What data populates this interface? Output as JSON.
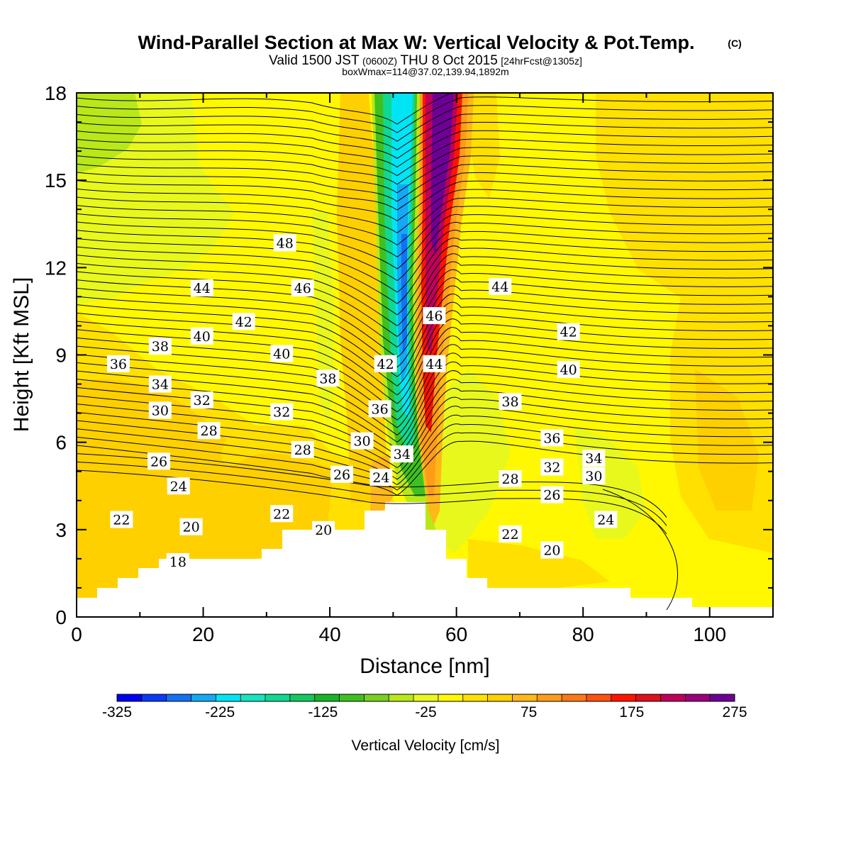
{
  "header": {
    "title": "Wind-Parallel Section at Max W: Vertical Velocity & Pot.Temp.",
    "copyright_mark": "(C)",
    "valid_prefix": "Valid 1500 JST",
    "valid_utc": "(0600Z)",
    "valid_date": "THU 8 Oct 2015",
    "forecast_tag": "[24hrFcst@1305z]",
    "box_info": "boxWmax=114@37.02,139.94,1892m"
  },
  "chart_data": {
    "type": "contour",
    "xlabel": "Distance [nm]",
    "ylabel": "Height [Kft MSL]",
    "xlim": [
      0,
      110
    ],
    "ylim": [
      0,
      18
    ],
    "x_ticks": [
      0,
      20,
      40,
      60,
      80,
      100
    ],
    "y_ticks": [
      0,
      3,
      6,
      9,
      12,
      15,
      18
    ],
    "grid": false,
    "fill_variable": "Vertical Velocity",
    "colorbar": {
      "title": "Vertical Velocity [cm/s]",
      "ticks": [
        -325,
        -225,
        -125,
        -25,
        75,
        175,
        275
      ],
      "levels": [
        -325,
        -300,
        -275,
        -250,
        -225,
        -200,
        -175,
        -150,
        -125,
        -100,
        -75,
        -50,
        -25,
        0,
        25,
        50,
        75,
        100,
        125,
        150,
        175,
        200,
        225,
        250,
        275
      ],
      "colors": [
        "#0000f5",
        "#0a3af5",
        "#1470f5",
        "#14a8f5",
        "#00e5f5",
        "#14e5c0",
        "#10d890",
        "#14c860",
        "#18b428",
        "#40c020",
        "#78d020",
        "#b8e818",
        "#e8f81c",
        "#fff800",
        "#ffe000",
        "#ffd000",
        "#ffb818",
        "#ff9c18",
        "#ff7818",
        "#ff5010",
        "#ff1400",
        "#e0101e",
        "#c0005a",
        "#9c007a",
        "#6e0096"
      ],
      "placement": "bottom"
    },
    "contour_variable": "Potential Temperature",
    "contour_labels": [
      {
        "x": 16.0,
        "y": 1.9,
        "label": "18"
      },
      {
        "x": 7.1,
        "y": 3.35,
        "label": "22"
      },
      {
        "x": 18.1,
        "y": 3.1,
        "label": "20"
      },
      {
        "x": 32.4,
        "y": 3.55,
        "label": "22"
      },
      {
        "x": 39.0,
        "y": 3.0,
        "label": "20"
      },
      {
        "x": 16.1,
        "y": 4.5,
        "label": "24"
      },
      {
        "x": 13.0,
        "y": 5.35,
        "label": "26"
      },
      {
        "x": 41.9,
        "y": 4.9,
        "label": "26"
      },
      {
        "x": 48.1,
        "y": 4.8,
        "label": "24"
      },
      {
        "x": 20.9,
        "y": 6.4,
        "label": "28"
      },
      {
        "x": 35.7,
        "y": 5.75,
        "label": "28"
      },
      {
        "x": 45.1,
        "y": 6.05,
        "label": "30"
      },
      {
        "x": 51.4,
        "y": 5.6,
        "label": "34"
      },
      {
        "x": 13.2,
        "y": 7.1,
        "label": "30"
      },
      {
        "x": 19.8,
        "y": 7.45,
        "label": "32"
      },
      {
        "x": 32.4,
        "y": 7.05,
        "label": "32"
      },
      {
        "x": 47.9,
        "y": 7.15,
        "label": "36"
      },
      {
        "x": 13.2,
        "y": 8.0,
        "label": "34"
      },
      {
        "x": 39.7,
        "y": 8.2,
        "label": "38"
      },
      {
        "x": 48.8,
        "y": 8.7,
        "label": "42"
      },
      {
        "x": 56.5,
        "y": 8.7,
        "label": "44"
      },
      {
        "x": 6.6,
        "y": 8.7,
        "label": "36"
      },
      {
        "x": 13.2,
        "y": 9.3,
        "label": "38"
      },
      {
        "x": 19.8,
        "y": 9.65,
        "label": "40"
      },
      {
        "x": 32.4,
        "y": 9.05,
        "label": "40"
      },
      {
        "x": 26.4,
        "y": 10.15,
        "label": "42"
      },
      {
        "x": 19.8,
        "y": 11.3,
        "label": "44"
      },
      {
        "x": 35.7,
        "y": 11.3,
        "label": "46"
      },
      {
        "x": 32.9,
        "y": 12.85,
        "label": "48"
      },
      {
        "x": 56.5,
        "y": 10.35,
        "label": "46"
      },
      {
        "x": 66.9,
        "y": 11.35,
        "label": "44"
      },
      {
        "x": 77.7,
        "y": 9.8,
        "label": "42"
      },
      {
        "x": 77.7,
        "y": 8.5,
        "label": "40"
      },
      {
        "x": 68.5,
        "y": 7.4,
        "label": "38"
      },
      {
        "x": 75.1,
        "y": 6.15,
        "label": "36"
      },
      {
        "x": 81.7,
        "y": 5.45,
        "label": "34"
      },
      {
        "x": 75.1,
        "y": 5.15,
        "label": "32"
      },
      {
        "x": 81.7,
        "y": 4.85,
        "label": "30"
      },
      {
        "x": 68.5,
        "y": 4.75,
        "label": "28"
      },
      {
        "x": 75.1,
        "y": 4.2,
        "label": "26"
      },
      {
        "x": 83.6,
        "y": 3.35,
        "label": "24"
      },
      {
        "x": 68.5,
        "y": 2.85,
        "label": "22"
      },
      {
        "x": 75.1,
        "y": 2.3,
        "label": "20"
      }
    ]
  }
}
